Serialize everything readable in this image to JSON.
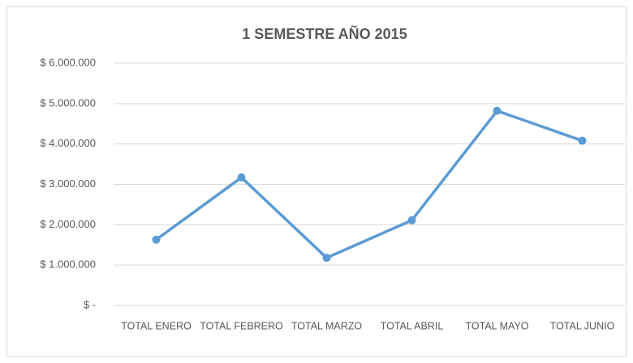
{
  "chart_data": {
    "type": "line",
    "title": "1 SEMESTRE AÑO 2015",
    "categories": [
      "TOTAL ENERO",
      "TOTAL FEBRERO",
      "TOTAL MARZO",
      "TOTAL ABRIL",
      "TOTAL MAYO",
      "TOTAL JUNIO"
    ],
    "values": [
      1630000,
      3170000,
      1180000,
      2110000,
      4820000,
      4080000
    ],
    "color": "#5b9bd5",
    "ylim": [
      0,
      6000000
    ],
    "yticks": [
      {
        "value": 0,
        "label": "$ -"
      },
      {
        "value": 1000000,
        "label": "$ 1.000.000"
      },
      {
        "value": 2000000,
        "label": "$ 2.000.000"
      },
      {
        "value": 3000000,
        "label": "$ 3.000.000"
      },
      {
        "value": 4000000,
        "label": "$ 4.000.000"
      },
      {
        "value": 5000000,
        "label": "$ 5.000.000"
      },
      {
        "value": 6000000,
        "label": "$ 6.000.000"
      }
    ],
    "grid": true
  }
}
